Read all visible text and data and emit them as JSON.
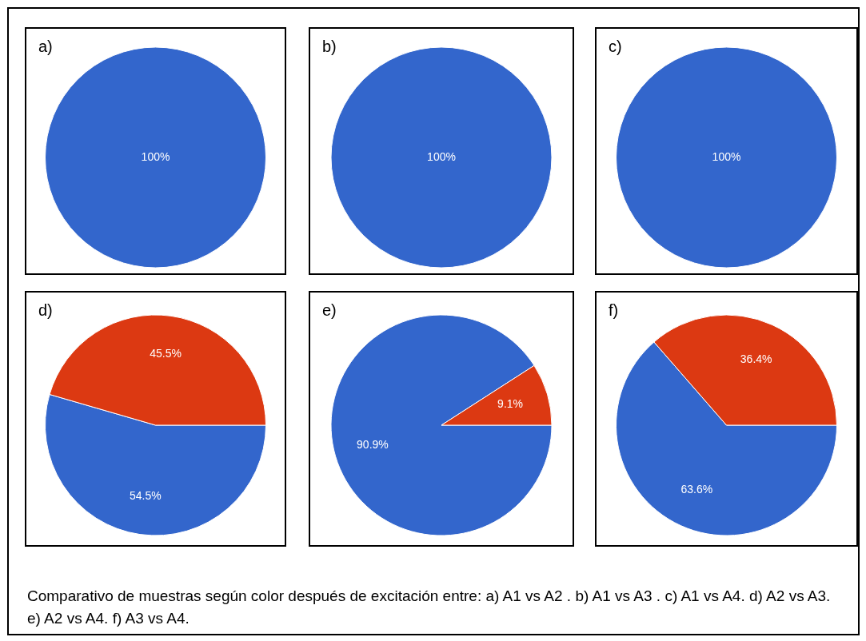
{
  "chart_data": [
    {
      "type": "pie",
      "title": "a)",
      "categories": [
        null
      ],
      "values": [
        100
      ],
      "colors": [
        "#3366cc"
      ],
      "value_labels": [
        "100%"
      ]
    },
    {
      "type": "pie",
      "title": "b)",
      "categories": [
        null
      ],
      "values": [
        100
      ],
      "colors": [
        "#3366cc"
      ],
      "value_labels": [
        "100%"
      ]
    },
    {
      "type": "pie",
      "title": "c)",
      "categories": [
        null
      ],
      "values": [
        100
      ],
      "colors": [
        "#3366cc"
      ],
      "value_labels": [
        "100%"
      ]
    },
    {
      "type": "pie",
      "title": "d)",
      "categories": [
        null,
        null
      ],
      "values": [
        54.5,
        45.5
      ],
      "colors": [
        "#3366cc",
        "#dc3912"
      ],
      "value_labels": [
        "54.5%",
        "45.5%"
      ]
    },
    {
      "type": "pie",
      "title": "e)",
      "categories": [
        null,
        null
      ],
      "values": [
        90.9,
        9.1
      ],
      "colors": [
        "#3366cc",
        "#dc3912"
      ],
      "value_labels": [
        "90.9%",
        "9.1%"
      ]
    },
    {
      "type": "pie",
      "title": "f)",
      "categories": [
        null,
        null
      ],
      "values": [
        63.6,
        36.4
      ],
      "colors": [
        "#3366cc",
        "#dc3912"
      ],
      "value_labels": [
        "63.6%",
        "36.4%"
      ],
      "annotations": [
        "Comparativo de muestras según color después de excitación entre: a) A1 vs A2 . b) A1 vs A3 . c) A1 vs A4. d) A2 vs A3. e) A2 vs A4. f) A3 vs A4."
      ]
    }
  ]
}
